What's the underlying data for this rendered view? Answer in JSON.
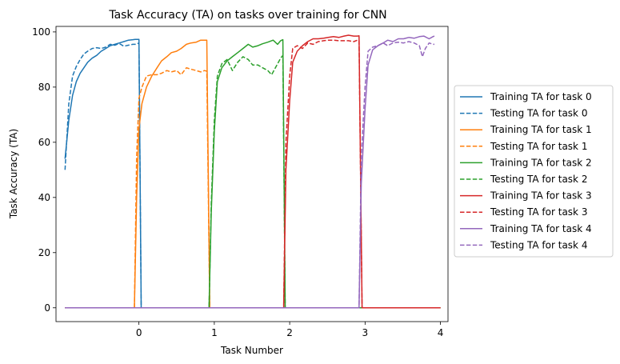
{
  "chart_data": {
    "type": "line",
    "title": "Task Accuracy (TA) on tasks over training for CNN",
    "xlabel": "Task Number",
    "ylabel": "Task Accuracy (TA)",
    "xlim": [
      -1.1,
      4.1
    ],
    "ylim": [
      -5,
      102
    ],
    "xticks": [
      0,
      1,
      2,
      3,
      4
    ],
    "yticks": [
      0,
      20,
      40,
      60,
      80,
      100
    ],
    "grid": false,
    "legend_position": "outside-right",
    "series": [
      {
        "name": "Training TA for task 0",
        "color": "#1f77b4",
        "dash": "solid",
        "points": [
          [
            -0.98,
            54
          ],
          [
            -0.93,
            68
          ],
          [
            -0.88,
            77
          ],
          [
            -0.83,
            82
          ],
          [
            -0.78,
            85
          ],
          [
            -0.73,
            87
          ],
          [
            -0.68,
            89
          ],
          [
            -0.62,
            90.5
          ],
          [
            -0.56,
            91.5
          ],
          [
            -0.5,
            93
          ],
          [
            -0.44,
            94
          ],
          [
            -0.38,
            95
          ],
          [
            -0.32,
            95.5
          ],
          [
            -0.26,
            96
          ],
          [
            -0.2,
            96.5
          ],
          [
            -0.14,
            97
          ],
          [
            -0.08,
            97.2
          ],
          [
            -0.05,
            97.3
          ],
          [
            0.0,
            97.3
          ],
          [
            0.03,
            0
          ],
          [
            4.0,
            0
          ]
        ]
      },
      {
        "name": "Testing TA for task 0",
        "color": "#1f77b4",
        "dash": "dashed",
        "points": [
          [
            -0.98,
            50
          ],
          [
            -0.93,
            74
          ],
          [
            -0.88,
            84
          ],
          [
            -0.83,
            87.5
          ],
          [
            -0.78,
            90
          ],
          [
            -0.73,
            92
          ],
          [
            -0.68,
            93
          ],
          [
            -0.62,
            94
          ],
          [
            -0.56,
            94.3
          ],
          [
            -0.5,
            94
          ],
          [
            -0.44,
            94.5
          ],
          [
            -0.38,
            95.5
          ],
          [
            -0.32,
            95.2
          ],
          [
            -0.26,
            95.8
          ],
          [
            -0.2,
            94.8
          ],
          [
            -0.14,
            95.2
          ],
          [
            -0.08,
            95.5
          ],
          [
            -0.04,
            95.5
          ],
          [
            0.0,
            96
          ],
          [
            0.03,
            0
          ],
          [
            4.0,
            0
          ]
        ]
      },
      {
        "name": "Training TA for task 1",
        "color": "#ff7f0e",
        "dash": "solid",
        "points": [
          [
            -0.98,
            0
          ],
          [
            -0.06,
            0
          ],
          [
            -0.03,
            40
          ],
          [
            0.0,
            65
          ],
          [
            0.04,
            74
          ],
          [
            0.1,
            80
          ],
          [
            0.17,
            84
          ],
          [
            0.24,
            87
          ],
          [
            0.3,
            89.5
          ],
          [
            0.37,
            91
          ],
          [
            0.43,
            92.5
          ],
          [
            0.5,
            93
          ],
          [
            0.56,
            94
          ],
          [
            0.63,
            95.5
          ],
          [
            0.69,
            96
          ],
          [
            0.76,
            96.3
          ],
          [
            0.82,
            97
          ],
          [
            0.87,
            97
          ],
          [
            0.9,
            97
          ],
          [
            0.94,
            0
          ],
          [
            4.0,
            0
          ]
        ]
      },
      {
        "name": "Testing TA for task 1",
        "color": "#ff7f0e",
        "dash": "dashed",
        "points": [
          [
            -0.98,
            0
          ],
          [
            -0.06,
            0
          ],
          [
            -0.03,
            55
          ],
          [
            0.0,
            76
          ],
          [
            0.04,
            80
          ],
          [
            0.1,
            84
          ],
          [
            0.17,
            84.5
          ],
          [
            0.24,
            84.5
          ],
          [
            0.3,
            85
          ],
          [
            0.37,
            86
          ],
          [
            0.43,
            85.5
          ],
          [
            0.5,
            86
          ],
          [
            0.56,
            84.5
          ],
          [
            0.63,
            87
          ],
          [
            0.69,
            86.5
          ],
          [
            0.76,
            86
          ],
          [
            0.82,
            85.5
          ],
          [
            0.87,
            86
          ],
          [
            0.9,
            85.8
          ],
          [
            0.94,
            0
          ],
          [
            4.0,
            0
          ]
        ]
      },
      {
        "name": "Training TA for task 2",
        "color": "#2ca02c",
        "dash": "solid",
        "points": [
          [
            -0.98,
            0
          ],
          [
            0.93,
            0
          ],
          [
            0.96,
            35
          ],
          [
            1.0,
            64
          ],
          [
            1.04,
            82
          ],
          [
            1.1,
            87
          ],
          [
            1.17,
            89.5
          ],
          [
            1.24,
            91
          ],
          [
            1.31,
            92.5
          ],
          [
            1.38,
            94
          ],
          [
            1.45,
            95.5
          ],
          [
            1.51,
            94.5
          ],
          [
            1.58,
            95
          ],
          [
            1.64,
            95.7
          ],
          [
            1.71,
            96.3
          ],
          [
            1.78,
            97
          ],
          [
            1.84,
            95.5
          ],
          [
            1.88,
            96.8
          ],
          [
            1.91,
            97.2
          ],
          [
            1.94,
            0
          ],
          [
            4.0,
            0
          ]
        ]
      },
      {
        "name": "Testing TA for task 2",
        "color": "#2ca02c",
        "dash": "dashed",
        "points": [
          [
            -0.98,
            0
          ],
          [
            0.93,
            0
          ],
          [
            0.96,
            38
          ],
          [
            1.0,
            68
          ],
          [
            1.04,
            84
          ],
          [
            1.1,
            88.5
          ],
          [
            1.17,
            90
          ],
          [
            1.24,
            86
          ],
          [
            1.31,
            89
          ],
          [
            1.38,
            91
          ],
          [
            1.45,
            90
          ],
          [
            1.51,
            88
          ],
          [
            1.58,
            88
          ],
          [
            1.64,
            87
          ],
          [
            1.71,
            86
          ],
          [
            1.76,
            84.5
          ],
          [
            1.82,
            87.5
          ],
          [
            1.88,
            90.5
          ],
          [
            1.91,
            91.5
          ],
          [
            1.94,
            0
          ],
          [
            4.0,
            0
          ]
        ]
      },
      {
        "name": "Training TA for task 3",
        "color": "#d62728",
        "dash": "solid",
        "points": [
          [
            -0.98,
            0
          ],
          [
            1.92,
            0
          ],
          [
            1.95,
            50
          ],
          [
            2.0,
            75
          ],
          [
            2.04,
            89
          ],
          [
            2.1,
            93
          ],
          [
            2.17,
            95
          ],
          [
            2.24,
            96.5
          ],
          [
            2.31,
            97.5
          ],
          [
            2.38,
            97.5
          ],
          [
            2.45,
            97.7
          ],
          [
            2.51,
            98
          ],
          [
            2.58,
            98.3
          ],
          [
            2.65,
            98
          ],
          [
            2.72,
            98.5
          ],
          [
            2.78,
            98.8
          ],
          [
            2.85,
            98.5
          ],
          [
            2.9,
            98.5
          ],
          [
            2.92,
            98.6
          ],
          [
            2.96,
            0
          ],
          [
            4.0,
            0
          ]
        ]
      },
      {
        "name": "Testing TA for task 3",
        "color": "#d62728",
        "dash": "dashed",
        "points": [
          [
            -0.98,
            0
          ],
          [
            1.92,
            0
          ],
          [
            1.95,
            60
          ],
          [
            2.0,
            84
          ],
          [
            2.04,
            94
          ],
          [
            2.1,
            95
          ],
          [
            2.17,
            94
          ],
          [
            2.24,
            96
          ],
          [
            2.31,
            95.5
          ],
          [
            2.38,
            96.5
          ],
          [
            2.45,
            96.8
          ],
          [
            2.51,
            97
          ],
          [
            2.58,
            97
          ],
          [
            2.65,
            96.8
          ],
          [
            2.72,
            96.8
          ],
          [
            2.78,
            96.8
          ],
          [
            2.85,
            96.5
          ],
          [
            2.9,
            97
          ],
          [
            2.92,
            97
          ],
          [
            2.96,
            0
          ],
          [
            4.0,
            0
          ]
        ]
      },
      {
        "name": "Training TA for task 4",
        "color": "#9467bd",
        "dash": "solid",
        "points": [
          [
            -0.98,
            0
          ],
          [
            2.92,
            0
          ],
          [
            2.95,
            45
          ],
          [
            3.0,
            72
          ],
          [
            3.04,
            88
          ],
          [
            3.1,
            93.5
          ],
          [
            3.17,
            95
          ],
          [
            3.24,
            96
          ],
          [
            3.3,
            97
          ],
          [
            3.37,
            96.5
          ],
          [
            3.44,
            97.5
          ],
          [
            3.51,
            97.5
          ],
          [
            3.58,
            98
          ],
          [
            3.65,
            97.7
          ],
          [
            3.72,
            98.3
          ],
          [
            3.78,
            98.5
          ],
          [
            3.85,
            97.5
          ],
          [
            3.9,
            98.3
          ],
          [
            3.92,
            98.5
          ]
        ]
      },
      {
        "name": "Testing TA for task 4",
        "color": "#9467bd",
        "dash": "dashed",
        "points": [
          [
            -0.98,
            0
          ],
          [
            2.92,
            0
          ],
          [
            2.95,
            55
          ],
          [
            3.0,
            80
          ],
          [
            3.04,
            93
          ],
          [
            3.1,
            94.5
          ],
          [
            3.17,
            95
          ],
          [
            3.24,
            96
          ],
          [
            3.3,
            95
          ],
          [
            3.37,
            96
          ],
          [
            3.44,
            96.3
          ],
          [
            3.51,
            96
          ],
          [
            3.58,
            96.5
          ],
          [
            3.65,
            96
          ],
          [
            3.72,
            95
          ],
          [
            3.76,
            91
          ],
          [
            3.8,
            94
          ],
          [
            3.85,
            96
          ],
          [
            3.9,
            95.5
          ],
          [
            3.92,
            95.5
          ]
        ]
      }
    ]
  }
}
